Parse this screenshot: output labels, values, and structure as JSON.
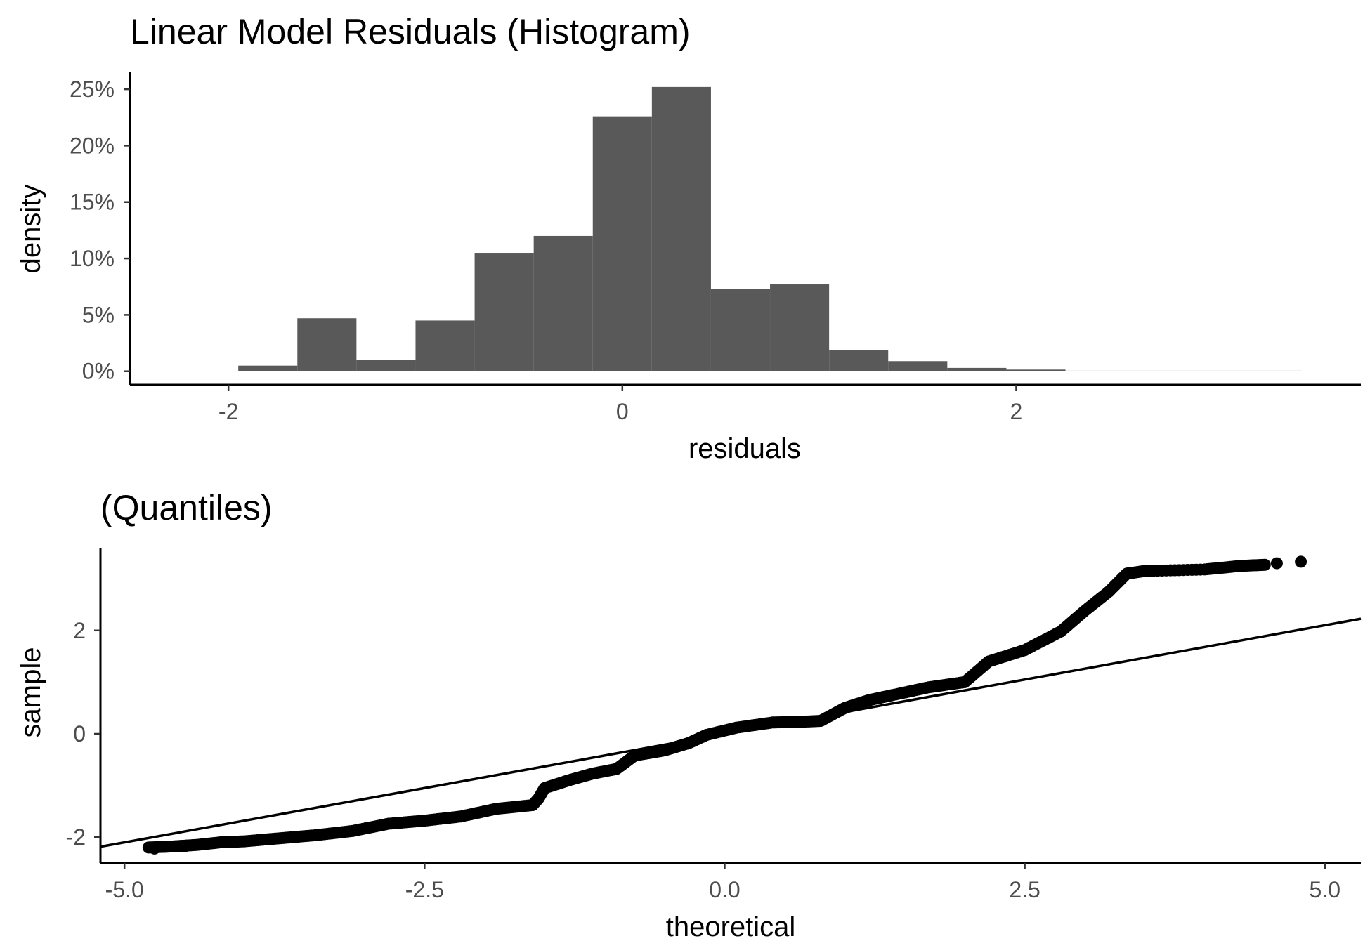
{
  "chart_data": [
    {
      "type": "bar",
      "subtype": "histogram",
      "title": "Linear Model Residuals (Histogram)",
      "xlabel": "residuals",
      "ylabel": "density",
      "xlim": [
        -2.5,
        3.75
      ],
      "ylim": [
        -0.012,
        0.265
      ],
      "x_ticks": [
        -2,
        0,
        2
      ],
      "x_tick_labels": [
        "-2",
        "0",
        "2"
      ],
      "y_ticks": [
        0,
        0.05,
        0.1,
        0.15,
        0.2,
        0.25
      ],
      "y_tick_labels": [
        "0%",
        "5%",
        "10%",
        "15%",
        "20%",
        "25%"
      ],
      "bar_color": "#595959",
      "grid": false,
      "bins": [
        {
          "x0": -1.95,
          "x1": -1.65,
          "value": 0.005
        },
        {
          "x0": -1.65,
          "x1": -1.35,
          "value": 0.047
        },
        {
          "x0": -1.35,
          "x1": -1.05,
          "value": 0.01
        },
        {
          "x0": -1.05,
          "x1": -0.75,
          "value": 0.045
        },
        {
          "x0": -0.75,
          "x1": -0.45,
          "value": 0.105
        },
        {
          "x0": -0.45,
          "x1": -0.15,
          "value": 0.12
        },
        {
          "x0": -0.15,
          "x1": 0.15,
          "value": 0.226
        },
        {
          "x0": 0.15,
          "x1": 0.45,
          "value": 0.252
        },
        {
          "x0": 0.45,
          "x1": 0.75,
          "value": 0.073
        },
        {
          "x0": 0.75,
          "x1": 1.05,
          "value": 0.077
        },
        {
          "x0": 1.05,
          "x1": 1.35,
          "value": 0.019
        },
        {
          "x0": 1.35,
          "x1": 1.65,
          "value": 0.009
        },
        {
          "x0": 1.65,
          "x1": 1.95,
          "value": 0.003
        },
        {
          "x0": 1.95,
          "x1": 2.25,
          "value": 0.0015
        },
        {
          "x0": 2.25,
          "x1": 2.55,
          "value": 0.0005
        },
        {
          "x0": 2.55,
          "x1": 2.85,
          "value": 0.0005
        },
        {
          "x0": 2.85,
          "x1": 3.15,
          "value": 0.0005
        },
        {
          "x0": 3.15,
          "x1": 3.45,
          "value": 0.0005
        }
      ]
    },
    {
      "type": "scatter",
      "subtype": "qq",
      "title": "(Quantiles)",
      "xlabel": "theoretical",
      "ylabel": "sample",
      "xlim": [
        -5.2,
        5.3
      ],
      "ylim": [
        -2.5,
        3.6
      ],
      "x_ticks": [
        -5.0,
        -2.5,
        0.0,
        2.5,
        5.0
      ],
      "x_tick_labels": [
        "-5.0",
        "-2.5",
        "0.0",
        "2.5",
        "5.0"
      ],
      "y_ticks": [
        -2,
        0,
        2
      ],
      "y_tick_labels": [
        "-2",
        "0",
        "2"
      ],
      "grid": false,
      "reference_line": {
        "intercept": 0,
        "slope": 0.42
      },
      "sample_curve": [
        [
          -4.8,
          -2.2
        ],
        [
          -4.6,
          -2.18
        ],
        [
          -4.4,
          -2.15
        ],
        [
          -4.2,
          -2.1
        ],
        [
          -4.0,
          -2.08
        ],
        [
          -3.7,
          -2.02
        ],
        [
          -3.4,
          -1.96
        ],
        [
          -3.1,
          -1.88
        ],
        [
          -2.8,
          -1.74
        ],
        [
          -2.5,
          -1.68
        ],
        [
          -2.2,
          -1.6
        ],
        [
          -1.9,
          -1.45
        ],
        [
          -1.6,
          -1.38
        ],
        [
          -1.55,
          -1.25
        ],
        [
          -1.5,
          -1.05
        ],
        [
          -1.3,
          -0.9
        ],
        [
          -1.1,
          -0.77
        ],
        [
          -0.9,
          -0.68
        ],
        [
          -0.75,
          -0.42
        ],
        [
          -0.5,
          -0.32
        ],
        [
          -0.3,
          -0.18
        ],
        [
          -0.15,
          -0.02
        ],
        [
          0.1,
          0.12
        ],
        [
          0.4,
          0.22
        ],
        [
          0.6,
          0.23
        ],
        [
          0.8,
          0.25
        ],
        [
          1.0,
          0.5
        ],
        [
          1.2,
          0.65
        ],
        [
          1.4,
          0.75
        ],
        [
          1.7,
          0.9
        ],
        [
          2.0,
          1.0
        ],
        [
          2.2,
          1.4
        ],
        [
          2.5,
          1.62
        ],
        [
          2.8,
          1.98
        ],
        [
          3.0,
          2.38
        ],
        [
          3.2,
          2.75
        ],
        [
          3.35,
          3.1
        ],
        [
          3.5,
          3.15
        ],
        [
          4.0,
          3.18
        ],
        [
          4.3,
          3.25
        ],
        [
          4.5,
          3.27
        ]
      ],
      "outlier_points": [
        {
          "x": -4.75,
          "y": -2.22
        },
        {
          "x": -4.5,
          "y": -2.18
        },
        {
          "x": 4.6,
          "y": 3.3
        },
        {
          "x": 4.8,
          "y": 3.33
        }
      ]
    }
  ]
}
